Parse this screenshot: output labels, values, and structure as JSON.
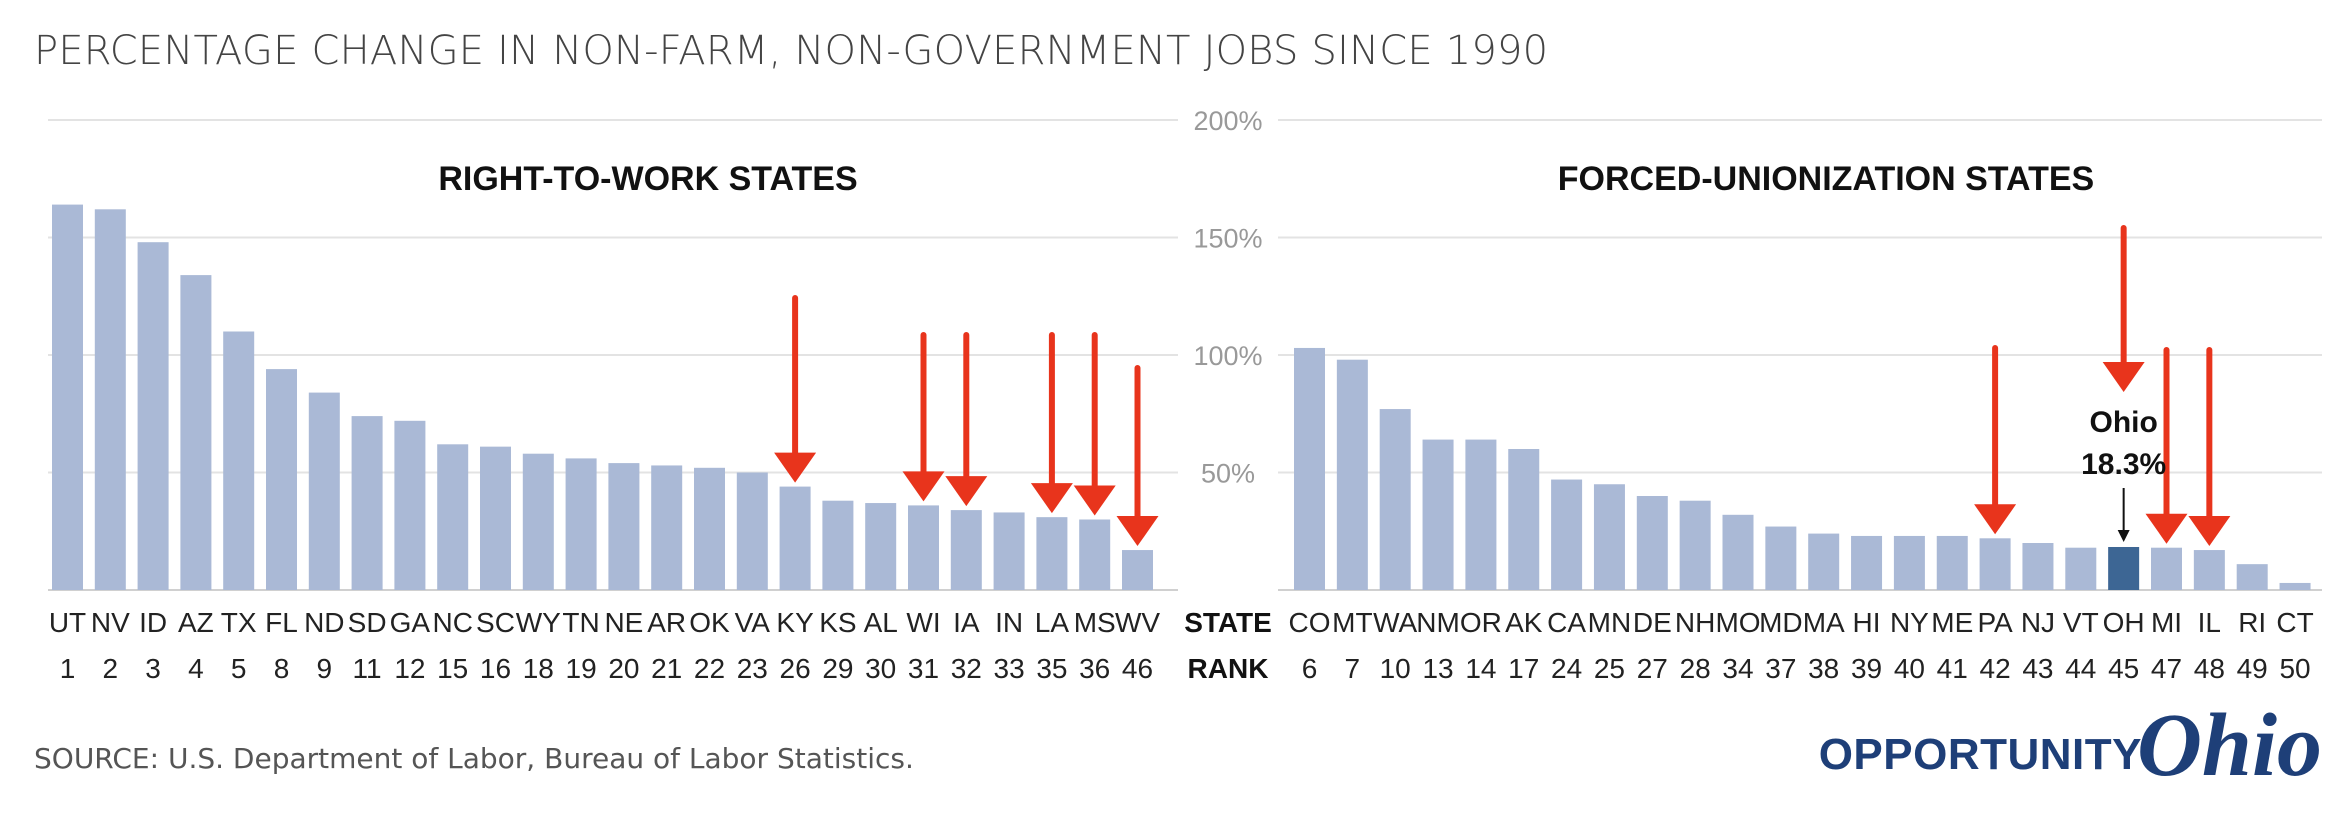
{
  "title": "PERCENTAGE CHANGE IN NON-FARM, NON-GOVERNMENT JOBS SINCE 1990",
  "source": "SOURCE: U.S. Department of Labor, Bureau of Labor Statistics.",
  "logo": {
    "word1": "OPPORTUNITY",
    "word2": "Ohio"
  },
  "colors": {
    "bar": "#aab9d6",
    "highlight": "#3d6694",
    "arrow": "#e8341c",
    "grid": "#e3e3e3",
    "logo": "#1e3f78"
  },
  "chart_data": {
    "type": "bar",
    "ylim": [
      0,
      200
    ],
    "y_ticks": [
      50,
      100,
      150,
      200
    ],
    "y_tick_labels": [
      "50%",
      "100%",
      "150%",
      "200%"
    ],
    "grid": true,
    "row_labels": {
      "state": "STATE",
      "rank": "RANK"
    },
    "panels": [
      {
        "title": "RIGHT-TO-WORK STATES",
        "categories": [
          "UT",
          "NV",
          "ID",
          "AZ",
          "TX",
          "FL",
          "ND",
          "SD",
          "GA",
          "NC",
          "SC",
          "WY",
          "TN",
          "NE",
          "AR",
          "OK",
          "VA",
          "KY",
          "KS",
          "AL",
          "WI",
          "IA",
          "IN",
          "LA",
          "MS",
          "WV"
        ],
        "ranks": [
          "1",
          "2",
          "3",
          "4",
          "5",
          "8",
          "9",
          "11",
          "12",
          "15",
          "16",
          "18",
          "19",
          "20",
          "21",
          "22",
          "23",
          "26",
          "29",
          "30",
          "31",
          "32",
          "33",
          "35",
          "36",
          "46"
        ],
        "values": [
          164,
          162,
          148,
          134,
          110,
          94,
          84,
          74,
          72,
          62,
          61,
          58,
          56,
          54,
          53,
          52,
          50,
          44,
          38,
          37,
          36,
          34,
          33,
          31,
          30,
          17
        ],
        "arrows": [
          "KY",
          "WI",
          "IA",
          "LA",
          "MS",
          "WV"
        ]
      },
      {
        "title": "FORCED-UNIONIZATION STATES",
        "categories": [
          "CO",
          "MT",
          "WA",
          "NM",
          "OR",
          "AK",
          "CA",
          "MN",
          "DE",
          "NH",
          "MO",
          "MD",
          "MA",
          "HI",
          "NY",
          "ME",
          "PA",
          "NJ",
          "VT",
          "OH",
          "MI",
          "IL",
          "RI",
          "CT"
        ],
        "ranks": [
          "6",
          "7",
          "10",
          "13",
          "14",
          "17",
          "24",
          "25",
          "27",
          "28",
          "34",
          "37",
          "38",
          "39",
          "40",
          "41",
          "42",
          "43",
          "44",
          "45",
          "47",
          "48",
          "49",
          "50"
        ],
        "values": [
          103,
          98,
          77,
          64,
          64,
          60,
          47,
          45,
          40,
          38,
          32,
          27,
          24,
          23,
          23,
          23,
          22,
          20,
          18,
          18.3,
          18,
          17,
          11,
          3
        ],
        "arrows": [
          "PA",
          "OH",
          "MI",
          "IL"
        ],
        "highlight": "OH",
        "annotation": {
          "state": "OH",
          "line1": "Ohio",
          "line2": "18.3%"
        }
      }
    ]
  }
}
